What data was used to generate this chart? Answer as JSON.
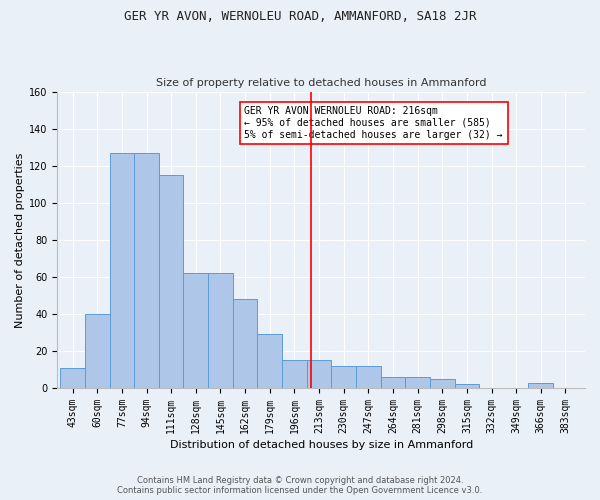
{
  "title": "GER YR AVON, WERNOLEU ROAD, AMMANFORD, SA18 2JR",
  "subtitle": "Size of property relative to detached houses in Ammanford",
  "xlabel": "Distribution of detached houses by size in Ammanford",
  "ylabel": "Number of detached properties",
  "categories": [
    "43sqm",
    "60sqm",
    "77sqm",
    "94sqm",
    "111sqm",
    "128sqm",
    "145sqm",
    "162sqm",
    "179sqm",
    "196sqm",
    "213sqm",
    "230sqm",
    "247sqm",
    "264sqm",
    "281sqm",
    "298sqm",
    "315sqm",
    "332sqm",
    "349sqm",
    "366sqm",
    "383sqm"
  ],
  "bins": [
    43,
    60,
    77,
    94,
    111,
    128,
    145,
    162,
    179,
    196,
    213,
    230,
    247,
    264,
    281,
    298,
    315,
    332,
    349,
    366,
    383,
    400
  ],
  "hist_values": [
    11,
    40,
    127,
    127,
    115,
    62,
    62,
    48,
    29,
    15,
    15,
    12,
    12,
    6,
    6,
    5,
    2,
    0,
    0,
    3,
    0
  ],
  "bar_color": "#aec6e8",
  "bar_edge_color": "#5b9bd5",
  "vline_x": 216,
  "vline_color": "red",
  "annotation_text": "GER YR AVON WERNOLEU ROAD: 216sqm\n← 95% of detached houses are smaller (585)\n5% of semi-detached houses are larger (32) →",
  "annotation_box_color": "white",
  "annotation_box_edge": "red",
  "ylim": [
    0,
    160
  ],
  "yticks": [
    0,
    20,
    40,
    60,
    80,
    100,
    120,
    140,
    160
  ],
  "bg_color": "#eaf0f8",
  "grid_color": "white",
  "title_fontsize": 9,
  "subtitle_fontsize": 8,
  "ylabel_fontsize": 8,
  "xlabel_fontsize": 8,
  "tick_fontsize": 7,
  "annotation_fontsize": 7,
  "footer_line1": "Contains HM Land Registry data © Crown copyright and database right 2024.",
  "footer_line2": "Contains public sector information licensed under the Open Government Licence v3.0."
}
